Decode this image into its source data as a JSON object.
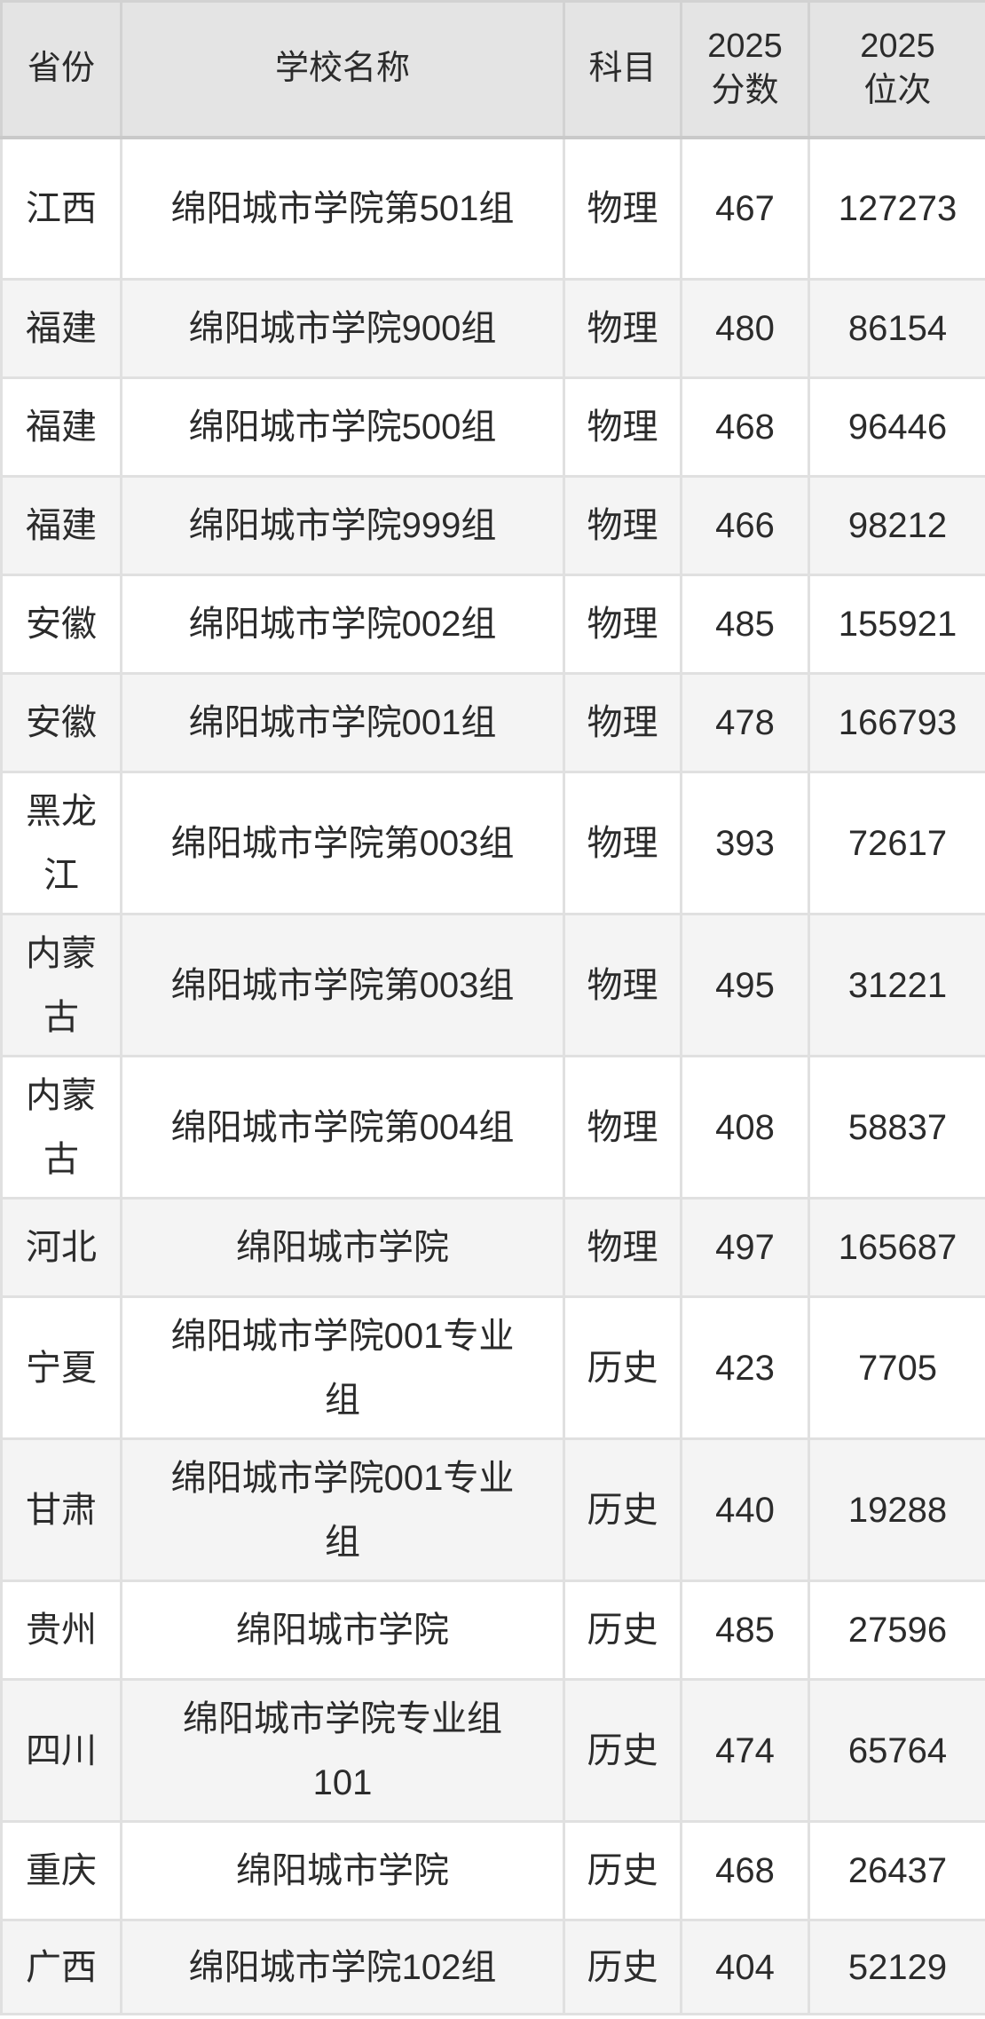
{
  "chart_data": {
    "type": "table",
    "columns": [
      "省份",
      "学校名称",
      "科目",
      "2025分数",
      "2025位次"
    ],
    "header_lines": [
      [
        "省份"
      ],
      [
        "学校名称"
      ],
      [
        "科目"
      ],
      [
        "2025",
        "分数"
      ],
      [
        "2025",
        "位次"
      ]
    ],
    "rows": [
      [
        "江西",
        "绵阳城市学院第501组",
        "物理",
        "467",
        "127273"
      ],
      [
        "福建",
        "绵阳城市学院900组",
        "物理",
        "480",
        "86154"
      ],
      [
        "福建",
        "绵阳城市学院500组",
        "物理",
        "468",
        "96446"
      ],
      [
        "福建",
        "绵阳城市学院999组",
        "物理",
        "466",
        "98212"
      ],
      [
        "安徽",
        "绵阳城市学院002组",
        "物理",
        "485",
        "155921"
      ],
      [
        "安徽",
        "绵阳城市学院001组",
        "物理",
        "478",
        "166793"
      ],
      [
        "黑龙江",
        "绵阳城市学院第003组",
        "物理",
        "393",
        "72617"
      ],
      [
        "内蒙古",
        "绵阳城市学院第003组",
        "物理",
        "495",
        "31221"
      ],
      [
        "内蒙古",
        "绵阳城市学院第004组",
        "物理",
        "408",
        "58837"
      ],
      [
        "河北",
        "绵阳城市学院",
        "物理",
        "497",
        "165687"
      ],
      [
        "宁夏",
        "绵阳城市学院001专业组",
        "历史",
        "423",
        "7705"
      ],
      [
        "甘肃",
        "绵阳城市学院001专业组",
        "历史",
        "440",
        "19288"
      ],
      [
        "贵州",
        "绵阳城市学院",
        "历史",
        "485",
        "27596"
      ],
      [
        "四川",
        "绵阳城市学院专业组101",
        "历史",
        "474",
        "65764"
      ],
      [
        "重庆",
        "绵阳城市学院",
        "历史",
        "468",
        "26437"
      ],
      [
        "广西",
        "绵阳城市学院102组",
        "历史",
        "404",
        "52129"
      ]
    ],
    "layout": {
      "grid": "on",
      "striped": true
    }
  },
  "colors": {
    "header_bg": "#e4e4e4",
    "stripe_bg": "#f4f4f4",
    "row_bg": "#ffffff",
    "border": "#e0e0e0",
    "header_border": "#d2d2d2",
    "text": "#2b2b2b"
  }
}
